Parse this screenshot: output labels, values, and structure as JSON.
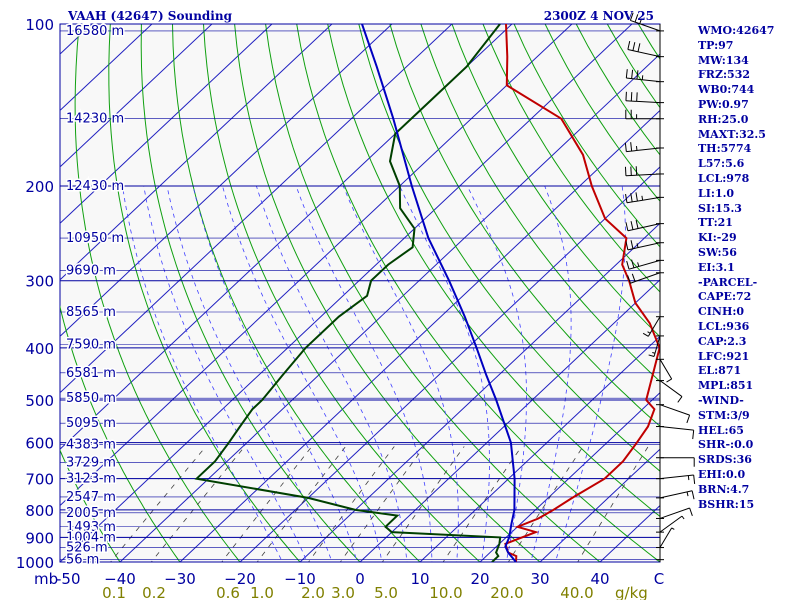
{
  "header": {
    "left": "VAAH (42647) Sounding",
    "right": "2300Z  4 NOV 25"
  },
  "colors": {
    "plot_bg": "#f8f8f8",
    "isobar": "#0000a0",
    "isotherm": "#2020c0",
    "dry_adiabat": "#10a010",
    "moist_adiabat": "#4040ff",
    "mixing_ratio": "#404040",
    "temperature": "#c00000",
    "dewpoint": "#004000",
    "parcel": "#0000c0",
    "text_blue": "#0000a0",
    "text_olive": "#808000"
  },
  "chart_data": {
    "type": "line",
    "title": "VAAH (42647) Sounding",
    "subtitle": "2300Z  4 NOV 25",
    "x_unit_label": "C",
    "mixing_ratio_unit": "g/kg",
    "x_min_label": "-50",
    "xlim": [
      -50,
      50
    ],
    "ylim": [
      1000,
      100
    ],
    "y_scale": "log",
    "grid": true,
    "isobars": [
      1000,
      900,
      800,
      700,
      600,
      500,
      400,
      300,
      200,
      100
    ],
    "y_tick_labels": [
      "100",
      "200",
      "300",
      "400",
      "500",
      "600",
      "700",
      "800",
      "900",
      "1000"
    ],
    "x_tick_labels": [
      "−40",
      "−30",
      "−20",
      "−10",
      "0",
      "10",
      "20",
      "30",
      "40"
    ],
    "x_tick_values": [
      -40,
      -30,
      -20,
      -10,
      0,
      10,
      20,
      30,
      40
    ],
    "mixing_ratio_labels": [
      "0.1",
      "0.2",
      "0.6",
      "1.0",
      "2.0",
      "3.0",
      "5.0",
      "10.0",
      "20.0",
      "40.0"
    ],
    "mixing_ratio_values": [
      0.1,
      0.2,
      0.6,
      1.0,
      2.0,
      3.0,
      5.0,
      10.0,
      20.0,
      40.0
    ],
    "heights": [
      {
        "p": 103,
        "label": "16580 m"
      },
      {
        "p": 150,
        "label": "14230 m"
      },
      {
        "p": 200,
        "label": "12430 m"
      },
      {
        "p": 250,
        "label": "10950 m"
      },
      {
        "p": 287,
        "label": "9690 m"
      },
      {
        "p": 343,
        "label": "8565 m"
      },
      {
        "p": 394,
        "label": "7590 m"
      },
      {
        "p": 445,
        "label": "6581 m"
      },
      {
        "p": 496,
        "label": "5850 m"
      },
      {
        "p": 552,
        "label": "5095 m"
      },
      {
        "p": 605,
        "label": "4383 m"
      },
      {
        "p": 653,
        "label": "3729 m"
      },
      {
        "p": 700,
        "label": "3123 m"
      },
      {
        "p": 757,
        "label": "2547 m"
      },
      {
        "p": 810,
        "label": "2005 m"
      },
      {
        "p": 860,
        "label": "1493 m"
      },
      {
        "p": 900,
        "label": "1004 m"
      },
      {
        "p": 940,
        "label": "526 m"
      },
      {
        "p": 990,
        "label": "56 m"
      }
    ],
    "series": [
      {
        "name": "temperature",
        "points": [
          [
            1000,
            26
          ],
          [
            975,
            25
          ],
          [
            960,
            23
          ],
          [
            925,
            21
          ],
          [
            880,
            24
          ],
          [
            860,
            20
          ],
          [
            830,
            22
          ],
          [
            800,
            23
          ],
          [
            760,
            24
          ],
          [
            700,
            26
          ],
          [
            650,
            26
          ],
          [
            600,
            25
          ],
          [
            560,
            24
          ],
          [
            520,
            22
          ],
          [
            500,
            19
          ],
          [
            440,
            15
          ],
          [
            400,
            12
          ],
          [
            360,
            6
          ],
          [
            330,
            0
          ],
          [
            300,
            -5
          ],
          [
            280,
            -9
          ],
          [
            250,
            -13
          ],
          [
            230,
            -20
          ],
          [
            200,
            -28
          ],
          [
            175,
            -35
          ],
          [
            150,
            -45
          ],
          [
            130,
            -60
          ],
          [
            115,
            -65
          ],
          [
            100,
            -71
          ]
        ]
      },
      {
        "name": "dewpoint",
        "points": [
          [
            1000,
            22
          ],
          [
            975,
            22
          ],
          [
            960,
            21
          ],
          [
            925,
            20
          ],
          [
            900,
            19
          ],
          [
            880,
            0
          ],
          [
            860,
            -2
          ],
          [
            820,
            -2
          ],
          [
            800,
            -10
          ],
          [
            760,
            -20
          ],
          [
            700,
            -42
          ],
          [
            650,
            -42
          ],
          [
            600,
            -43
          ],
          [
            560,
            -44
          ],
          [
            520,
            -45
          ],
          [
            500,
            -45
          ],
          [
            450,
            -46
          ],
          [
            400,
            -47
          ],
          [
            350,
            -47
          ],
          [
            320,
            -46
          ],
          [
            300,
            -48
          ],
          [
            280,
            -48
          ],
          [
            260,
            -47
          ],
          [
            240,
            -50
          ],
          [
            220,
            -56
          ],
          [
            200,
            -60
          ],
          [
            180,
            -66
          ],
          [
            160,
            -70
          ],
          [
            140,
            -70
          ],
          [
            120,
            -70
          ],
          [
            100,
            -72
          ]
        ]
      },
      {
        "name": "parcel",
        "points": [
          [
            1000,
            26
          ],
          [
            960,
            23
          ],
          [
            936,
            21.5
          ],
          [
            900,
            20.5
          ],
          [
            850,
            18.5
          ],
          [
            800,
            16.5
          ],
          [
            700,
            11
          ],
          [
            600,
            4
          ],
          [
            500,
            -6
          ],
          [
            450,
            -12
          ],
          [
            400,
            -18.5
          ],
          [
            350,
            -26
          ],
          [
            300,
            -35
          ],
          [
            250,
            -46
          ],
          [
            200,
            -58
          ],
          [
            150,
            -73
          ],
          [
            120,
            -85
          ],
          [
            100,
            -95
          ]
        ]
      }
    ]
  },
  "indices": [
    "WMO:42647",
    "TP:97",
    "MW:134",
    "FRZ:532",
    "WB0:744",
    "PW:0.97",
    "RH:25.0",
    "MAXT:32.5",
    "TH:5774",
    "L57:5.6",
    "LCL:978",
    "LI:1.0",
    "SI:15.3",
    "TT:21",
    "KI:-29",
    "SW:56",
    "EI:3.1",
    "-PARCEL-",
    "CAPE:72",
    "CINH:0",
    "LCL:936",
    "CAP:2.3",
    "LFC:921",
    "EL:871",
    "MPL:851",
    "-WIND-",
    "STM:3/9",
    "HEL:65",
    "SHR-:0.0",
    "SRDS:36",
    "EHI:0.0",
    "BRN:4.7",
    "BSHR:15"
  ],
  "wind_barbs": [
    {
      "p": 103,
      "dir": 300,
      "spd": 25
    },
    {
      "p": 115,
      "dir": 290,
      "spd": 30
    },
    {
      "p": 128,
      "dir": 280,
      "spd": 35
    },
    {
      "p": 140,
      "dir": 275,
      "spd": 30
    },
    {
      "p": 150,
      "dir": 270,
      "spd": 25
    },
    {
      "p": 170,
      "dir": 260,
      "spd": 25
    },
    {
      "p": 190,
      "dir": 265,
      "spd": 30
    },
    {
      "p": 210,
      "dir": 255,
      "spd": 35
    },
    {
      "p": 235,
      "dir": 250,
      "spd": 30
    },
    {
      "p": 255,
      "dir": 250,
      "spd": 25
    },
    {
      "p": 275,
      "dir": 245,
      "spd": 25
    },
    {
      "p": 290,
      "dir": 240,
      "spd": 20
    },
    {
      "p": 350,
      "dir": 200,
      "spd": 15
    },
    {
      "p": 380,
      "dir": 190,
      "spd": 15
    },
    {
      "p": 420,
      "dir": 160,
      "spd": 10
    },
    {
      "p": 460,
      "dir": 140,
      "spd": 10
    },
    {
      "p": 510,
      "dir": 120,
      "spd": 10
    },
    {
      "p": 560,
      "dir": 100,
      "spd": 10
    },
    {
      "p": 640,
      "dir": 90,
      "spd": 10
    },
    {
      "p": 700,
      "dir": 80,
      "spd": 15
    },
    {
      "p": 760,
      "dir": 70,
      "spd": 15
    },
    {
      "p": 830,
      "dir": 60,
      "spd": 10
    },
    {
      "p": 880,
      "dir": 40,
      "spd": 5
    },
    {
      "p": 940,
      "dir": 20,
      "spd": 5
    },
    {
      "p": 990,
      "dir": 0,
      "spd": 0
    }
  ]
}
